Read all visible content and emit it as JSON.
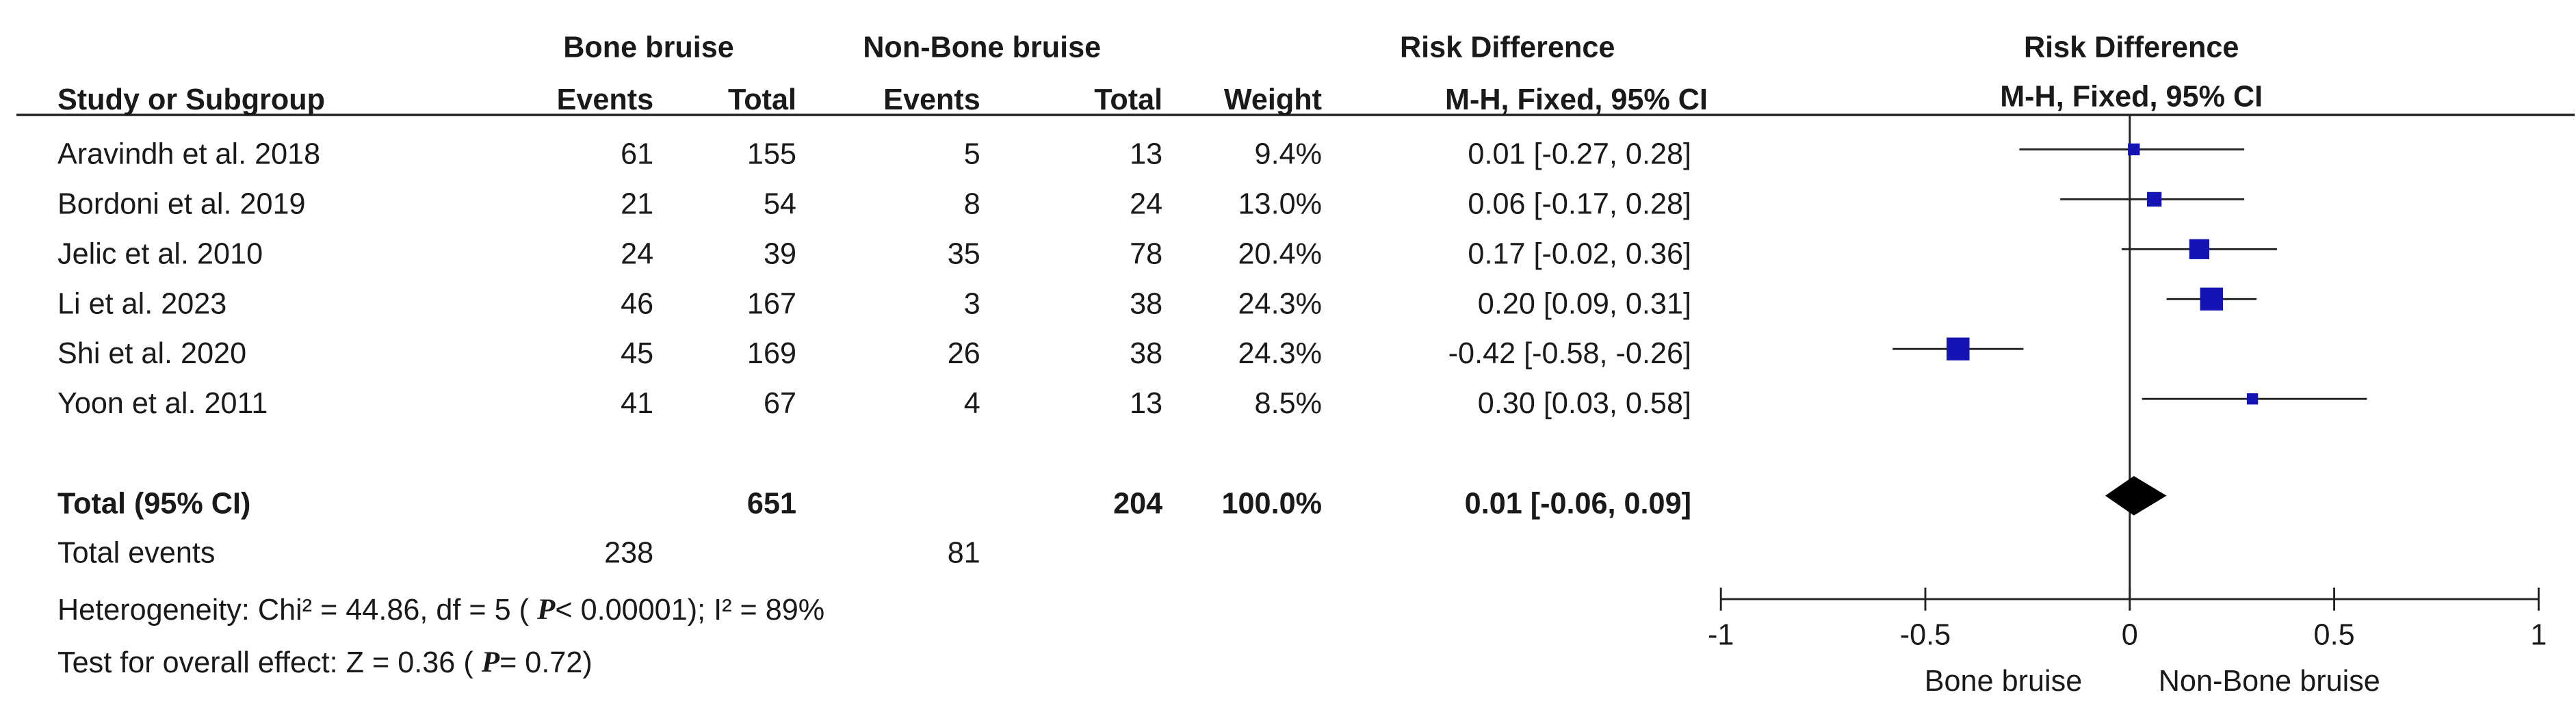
{
  "chart_data": {
    "type": "forest",
    "group_headers": [
      "Bone bruise",
      "Non-Bone bruise",
      "Risk Difference"
    ],
    "columns": [
      "Study or Subgroup",
      "Events",
      "Total",
      "Events",
      "Total",
      "Weight",
      "M-H, Fixed, 95% CI"
    ],
    "plot_title": "Risk Difference",
    "plot_subtitle": "M-H, Fixed, 95% CI",
    "color": "#1414b4",
    "studies": [
      {
        "name": "Aravindh et al. 2018",
        "events_1": 61,
        "total_1": 155,
        "events_2": 5,
        "total_2": 13,
        "weight": 9.4,
        "weight_label": "9.4%",
        "rd": 0.01,
        "ci_low": -0.27,
        "ci_high": 0.28,
        "rd_label": "0.01 [-0.27, 0.28]"
      },
      {
        "name": "Bordoni et al. 2019",
        "events_1": 21,
        "total_1": 54,
        "events_2": 8,
        "total_2": 24,
        "weight": 13.0,
        "weight_label": "13.0%",
        "rd": 0.06,
        "ci_low": -0.17,
        "ci_high": 0.28,
        "rd_label": "0.06 [-0.17, 0.28]"
      },
      {
        "name": "Jelic et al. 2010",
        "events_1": 24,
        "total_1": 39,
        "events_2": 35,
        "total_2": 78,
        "weight": 20.4,
        "weight_label": "20.4%",
        "rd": 0.17,
        "ci_low": -0.02,
        "ci_high": 0.36,
        "rd_label": "0.17 [-0.02, 0.36]"
      },
      {
        "name": "Li et al. 2023",
        "events_1": 46,
        "total_1": 167,
        "events_2": 3,
        "total_2": 38,
        "weight": 24.3,
        "weight_label": "24.3%",
        "rd": 0.2,
        "ci_low": 0.09,
        "ci_high": 0.31,
        "rd_label": "0.20 [0.09, 0.31]"
      },
      {
        "name": "Shi et al. 2020",
        "events_1": 45,
        "total_1": 169,
        "events_2": 26,
        "total_2": 38,
        "weight": 24.3,
        "weight_label": "24.3%",
        "rd": -0.42,
        "ci_low": -0.58,
        "ci_high": -0.26,
        "rd_label": "-0.42 [-0.58, -0.26]"
      },
      {
        "name": "Yoon et al. 2011",
        "events_1": 41,
        "total_1": 67,
        "events_2": 4,
        "total_2": 13,
        "weight": 8.5,
        "weight_label": "8.5%",
        "rd": 0.3,
        "ci_low": 0.03,
        "ci_high": 0.58,
        "rd_label": "0.30 [0.03, 0.58]"
      }
    ],
    "total": {
      "name": "Total (95% CI)",
      "total_1": 651,
      "total_2": 204,
      "weight": 100.0,
      "weight_label": "100.0%",
      "rd": 0.01,
      "ci_low": -0.06,
      "ci_high": 0.09,
      "rd_label": "0.01 [-0.06, 0.09]"
    },
    "total_events": {
      "name": "Total events",
      "events_1": 238,
      "events_2": 81
    },
    "heterogeneity": [
      "Heterogeneity: Chi² = 44.86, df = 5 ( ",
      "P",
      "< 0.00001); I² = 89%"
    ],
    "overall_effect": [
      "Test for overall effect: Z = 0.36 ( ",
      "P",
      "= 0.72)"
    ],
    "xlim": [
      -1,
      1
    ],
    "xticks": [
      -1,
      -0.5,
      0,
      0.5,
      1
    ],
    "x_left_label": "Bone bruise",
    "x_right_label": "Non-Bone bruise"
  }
}
